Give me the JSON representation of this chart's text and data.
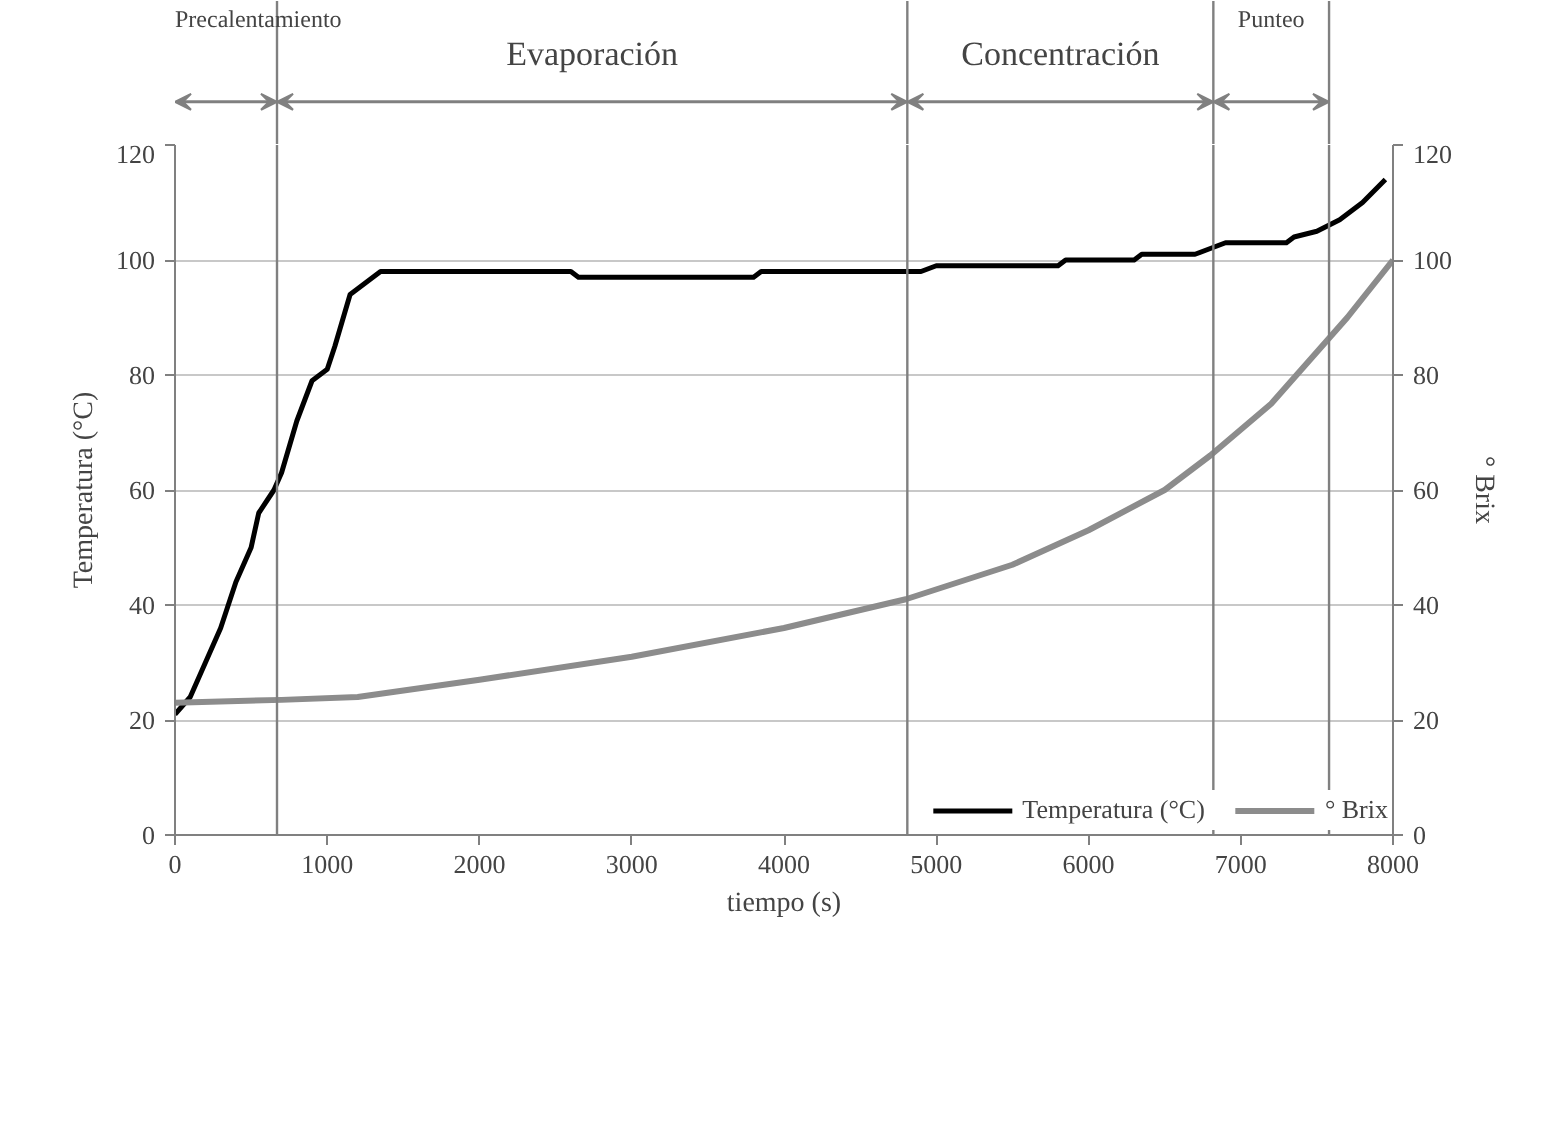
{
  "chart_data": {
    "type": "line",
    "xlabel": "tiempo (s)",
    "ylabel": "Temperatura (°C)",
    "y2label": "° Brix",
    "xlim": [
      0,
      8000
    ],
    "xticks": [
      0,
      1000,
      2000,
      3000,
      4000,
      5000,
      6000,
      7000,
      8000
    ],
    "ylim": [
      0,
      120
    ],
    "yticks": [
      0,
      20,
      40,
      60,
      80,
      100,
      120
    ],
    "y2lim": [
      0,
      120
    ],
    "y2ticks": [
      0,
      20,
      40,
      60,
      80,
      100,
      120
    ],
    "grid": "y",
    "legend": "bottom right",
    "line_style": "solid",
    "marker": "none",
    "series": [
      {
        "name": "Temperatura (°C)",
        "color": "#000000",
        "x": [
          0,
          100,
          200,
          300,
          400,
          500,
          550,
          650,
          700,
          800,
          900,
          1000,
          1050,
          1150,
          1250,
          1350,
          2600,
          2650,
          3800,
          3850,
          4900,
          5000,
          5800,
          5850,
          6300,
          6350,
          6700,
          6800,
          6900,
          7300,
          7350,
          7500,
          7650,
          7800,
          7950
        ],
        "values": [
          21,
          24,
          30,
          36,
          44,
          50,
          56,
          60,
          63,
          72,
          79,
          81,
          85,
          94,
          96,
          98,
          98,
          97,
          97,
          98,
          98,
          99,
          99,
          100,
          100,
          101,
          101,
          102,
          103,
          103,
          104,
          105,
          107,
          110,
          114
        ]
      },
      {
        "name": "° Brix",
        "color": "#8c8c8c",
        "axis": "y2",
        "x": [
          0,
          700,
          1200,
          2000,
          3000,
          4000,
          4800,
          5500,
          6000,
          6500,
          6800,
          7200,
          7500,
          7700,
          8000
        ],
        "values": [
          23,
          23.5,
          24,
          27,
          31,
          36,
          41,
          47,
          53,
          60,
          66,
          75,
          84,
          90,
          100
        ]
      }
    ],
    "ref_lines": [
      {
        "axis": "x",
        "value": 670,
        "color": "#808080"
      },
      {
        "axis": "x",
        "value": 4810,
        "color": "#808080"
      },
      {
        "axis": "x",
        "value": 6820,
        "color": "#808080"
      },
      {
        "axis": "x",
        "value": 7580,
        "color": "#808080"
      }
    ],
    "annotations": [
      "Precalentamiento",
      "Evaporación",
      "Concentración",
      "Punteo"
    ]
  }
}
